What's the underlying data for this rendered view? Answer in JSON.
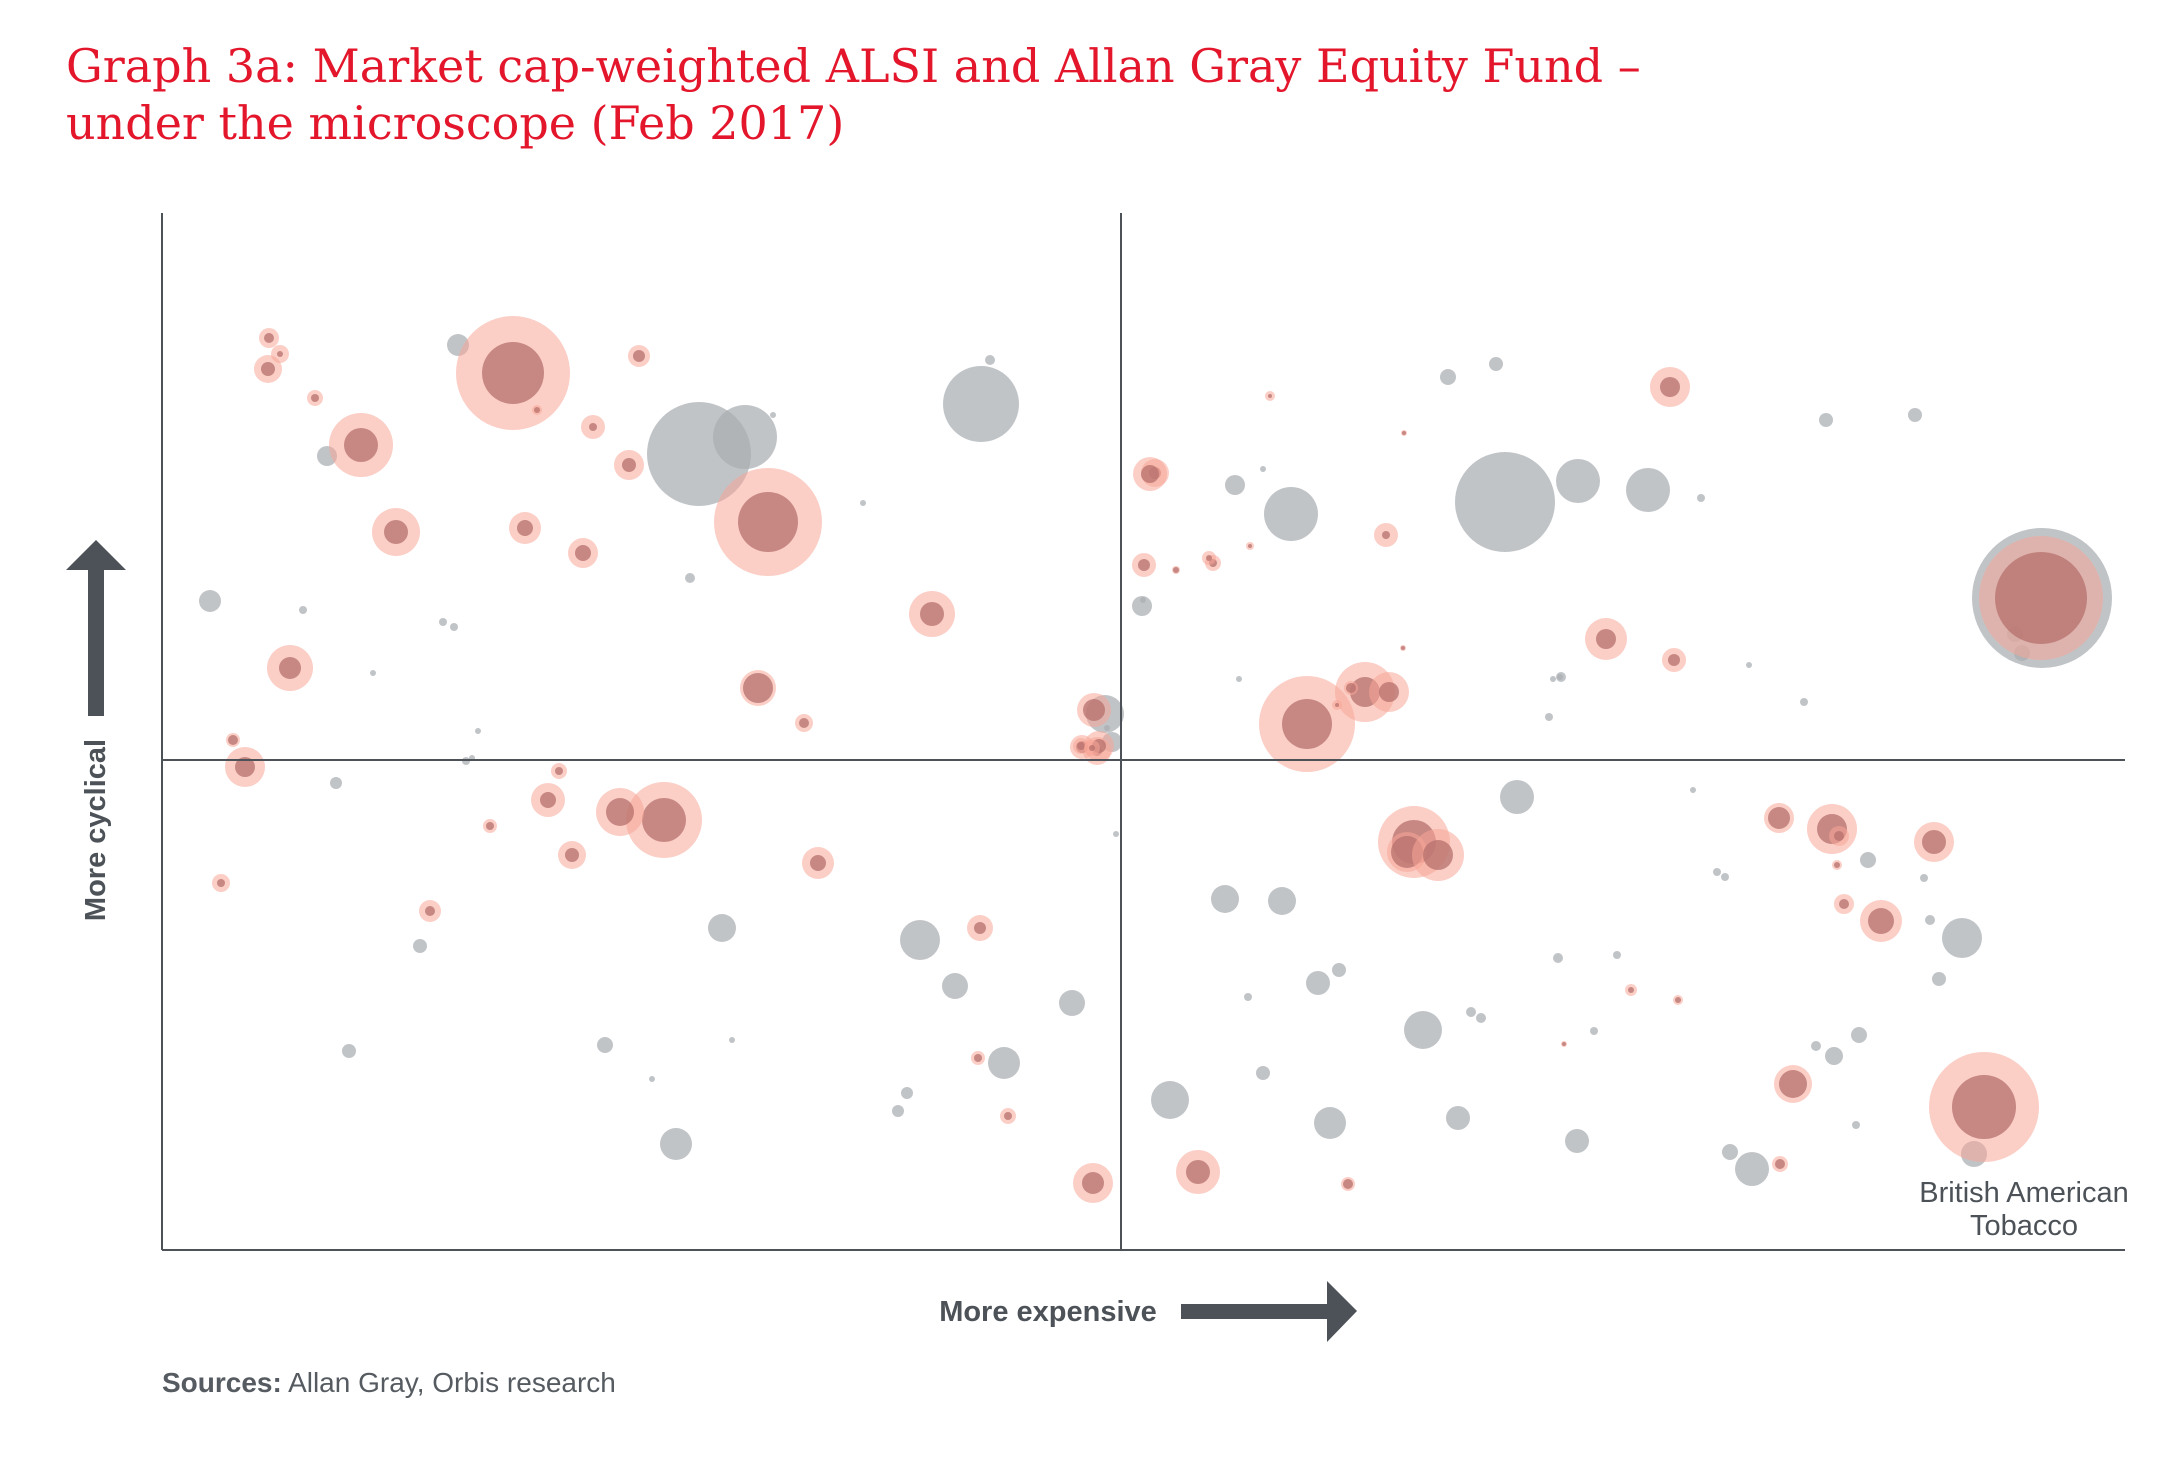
{
  "title": {
    "line1": "Graph 3a: Market cap-weighted ALSI and Allan Gray Equity Fund –",
    "line2": "under the microscope (Feb 2017)"
  },
  "sources": {
    "label": "Sources:",
    "text": " Allan Gray, Orbis research"
  },
  "colors": {
    "title": "#e3162b",
    "alsi": "#a9adb2",
    "fund_outer": "#f7a597",
    "fund_inner": "#b5706c",
    "axis": "#4c5257",
    "text": "#555b60"
  },
  "chart_data": {
    "type": "scatter",
    "xlabel": "More expensive",
    "ylabel": "More cyclical",
    "annotation": "British American\nTobacco",
    "series": [
      {
        "name": "",
        "role": "alsi",
        "points": [
          [
            990,
            360,
            5
          ],
          [
            699,
            454,
            52
          ],
          [
            745,
            437,
            32
          ],
          [
            981,
            404,
            38
          ],
          [
            458,
            345,
            11
          ],
          [
            327,
            456,
            10
          ],
          [
            210,
            601,
            11
          ],
          [
            303,
            610,
            4
          ],
          [
            443,
            622,
            4
          ],
          [
            454,
            627,
            4
          ],
          [
            773,
            415,
            3
          ],
          [
            690,
            578,
            5
          ],
          [
            863,
            503,
            3
          ],
          [
            373,
            673,
            3
          ],
          [
            478,
            731,
            3
          ],
          [
            466,
            761,
            4
          ],
          [
            472,
            758,
            3
          ],
          [
            336,
            783,
            6
          ],
          [
            420,
            946,
            7
          ],
          [
            349,
            1051,
            7
          ],
          [
            605,
            1045,
            8
          ],
          [
            652,
            1079,
            3
          ],
          [
            732,
            1040,
            3
          ],
          [
            722,
            928,
            14
          ],
          [
            920,
            940,
            20
          ],
          [
            955,
            986,
            13
          ],
          [
            1072,
            1003,
            13
          ],
          [
            1004,
            1063,
            16
          ],
          [
            907,
            1093,
            6
          ],
          [
            898,
            1111,
            6
          ],
          [
            676,
            1144,
            16
          ],
          [
            1105,
            714,
            19
          ],
          [
            1107,
            728,
            3
          ],
          [
            1116,
            834,
            3
          ],
          [
            1112,
            742,
            10
          ],
          [
            1142,
            606,
            10
          ],
          [
            1235,
            485,
            10
          ],
          [
            1291,
            514,
            27
          ],
          [
            1263,
            469,
            3
          ],
          [
            1448,
            377,
            8
          ],
          [
            1496,
            364,
            7
          ],
          [
            1505,
            502,
            50
          ],
          [
            1578,
            481,
            22
          ],
          [
            1648,
            490,
            22
          ],
          [
            1826,
            420,
            7
          ],
          [
            1915,
            415,
            7
          ],
          [
            1701,
            498,
            4
          ],
          [
            1143,
            600,
            3
          ],
          [
            1239,
            679,
            3
          ],
          [
            1225,
            899,
            14
          ],
          [
            1282,
            901,
            14
          ],
          [
            1517,
            797,
            17
          ],
          [
            1549,
            717,
            4
          ],
          [
            1561,
            677,
            5
          ],
          [
            1693,
            790,
            3
          ],
          [
            1717,
            872,
            4
          ],
          [
            1248,
            997,
            4
          ],
          [
            1318,
            983,
            12
          ],
          [
            1339,
            970,
            7
          ],
          [
            1423,
            1030,
            19
          ],
          [
            1471,
            1012,
            5
          ],
          [
            1481,
            1018,
            5
          ],
          [
            1558,
            958,
            5
          ],
          [
            1594,
            1031,
            4
          ],
          [
            1617,
            955,
            4
          ],
          [
            1170,
            1100,
            19
          ],
          [
            1263,
            1073,
            7
          ],
          [
            1330,
            1123,
            16
          ],
          [
            1458,
            1118,
            12
          ],
          [
            1577,
            1141,
            12
          ],
          [
            1730,
            1152,
            8
          ],
          [
            1752,
            1169,
            17
          ],
          [
            1856,
            1125,
            4
          ],
          [
            1816,
            1046,
            5
          ],
          [
            1834,
            1056,
            9
          ],
          [
            1859,
            1035,
            8
          ],
          [
            1930,
            920,
            5
          ],
          [
            1868,
            860,
            8
          ],
          [
            1962,
            938,
            20
          ],
          [
            1939,
            979,
            7
          ],
          [
            1974,
            1154,
            13
          ],
          [
            2022,
            653,
            8
          ],
          [
            2015,
            634,
            8
          ],
          [
            1725,
            877,
            4
          ],
          [
            1749,
            665,
            3
          ],
          [
            1924,
            878,
            4
          ],
          [
            1804,
            702,
            4
          ],
          [
            2042,
            598,
            70
          ],
          [
            1553,
            679,
            3
          ],
          [
            1560,
            677,
            3
          ]
        ]
      },
      {
        "name": "",
        "role": "fund",
        "points": [
          [
            513,
            373,
            57,
            31
          ],
          [
            768,
            522,
            54,
            30
          ],
          [
            664,
            820,
            38,
            22
          ],
          [
            2041,
            598,
            62,
            46
          ],
          [
            1984,
            1107,
            55,
            32
          ],
          [
            1307,
            724,
            48,
            25
          ],
          [
            1365,
            692,
            30,
            15
          ],
          [
            361,
            445,
            32,
            17
          ],
          [
            396,
            532,
            24,
            12
          ],
          [
            1606,
            639,
            21,
            10
          ],
          [
            268,
            369,
            14,
            7
          ],
          [
            280,
            354,
            9,
            3
          ],
          [
            537,
            410,
            5,
            3
          ],
          [
            593,
            427,
            12,
            4
          ],
          [
            629,
            465,
            15,
            7
          ],
          [
            639,
            356,
            11,
            6
          ],
          [
            315,
            398,
            8,
            4
          ],
          [
            525,
            528,
            16,
            8
          ],
          [
            583,
            553,
            15,
            8
          ],
          [
            932,
            614,
            23,
            12
          ],
          [
            1155,
            473,
            14,
            6
          ],
          [
            1176,
            570,
            4,
            3
          ],
          [
            1213,
            563,
            8,
            4
          ],
          [
            290,
            668,
            23,
            11
          ],
          [
            758,
            688,
            18,
            15
          ],
          [
            804,
            723,
            9,
            5
          ],
          [
            1094,
            710,
            17,
            11
          ],
          [
            1097,
            751,
            14,
            5
          ],
          [
            1389,
            692,
            20,
            10
          ],
          [
            1670,
            387,
            20,
            10
          ],
          [
            245,
            767,
            20,
            10
          ],
          [
            233,
            740,
            7,
            5
          ],
          [
            221,
            883,
            9,
            4
          ],
          [
            430,
            911,
            11,
            5
          ],
          [
            572,
            855,
            14,
            7
          ],
          [
            620,
            812,
            24,
            14
          ],
          [
            818,
            863,
            16,
            8
          ],
          [
            490,
            826,
            7,
            4
          ],
          [
            559,
            771,
            8,
            4
          ],
          [
            548,
            800,
            17,
            8
          ],
          [
            980,
            928,
            13,
            6
          ],
          [
            1082,
            747,
            12,
            6
          ],
          [
            1270,
            396,
            5,
            2
          ],
          [
            1093,
            1183,
            20,
            11
          ],
          [
            1414,
            842,
            36,
            22
          ],
          [
            1407,
            852,
            20,
            16
          ],
          [
            1438,
            855,
            26,
            15
          ],
          [
            1564,
            1044,
            3,
            2
          ],
          [
            1779,
            818,
            15,
            11
          ],
          [
            1832,
            829,
            25,
            15
          ],
          [
            1839,
            836,
            10,
            5
          ],
          [
            1881,
            921,
            21,
            13
          ],
          [
            1934,
            842,
            20,
            12
          ],
          [
            1844,
            904,
            10,
            5
          ],
          [
            1837,
            865,
            5,
            3
          ],
          [
            1793,
            1084,
            19,
            14
          ],
          [
            1780,
            1164,
            8,
            5
          ],
          [
            1198,
            1172,
            22,
            12
          ],
          [
            1348,
            1184,
            7,
            5
          ],
          [
            978,
            1058,
            7,
            4
          ],
          [
            1631,
            990,
            6,
            3
          ],
          [
            1678,
            1000,
            5,
            3
          ],
          [
            1674,
            660,
            12,
            6
          ],
          [
            1404,
            433,
            3,
            2
          ],
          [
            1144,
            565,
            12,
            6
          ],
          [
            1209,
            558,
            7,
            3
          ],
          [
            1250,
            546,
            4,
            2
          ],
          [
            1351,
            688,
            7,
            5
          ],
          [
            1337,
            705,
            5,
            2
          ],
          [
            269,
            338,
            10,
            5
          ],
          [
            1386,
            535,
            12,
            4
          ],
          [
            1099,
            746,
            15,
            7
          ],
          [
            1081,
            746,
            8,
            4
          ],
          [
            1008,
            1116,
            8,
            4
          ],
          [
            1150,
            474,
            17,
            9
          ],
          [
            1092,
            748,
            8,
            3
          ],
          [
            1403,
            648,
            3,
            2
          ]
        ]
      }
    ],
    "grid": false,
    "legend": "none"
  }
}
